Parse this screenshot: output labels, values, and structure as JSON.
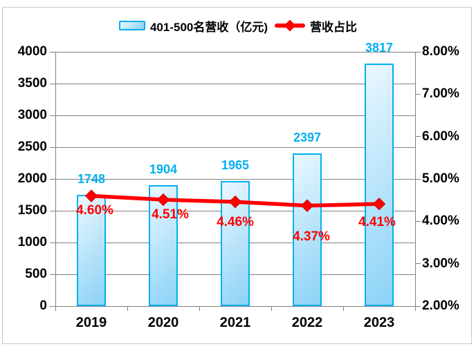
{
  "legend": [
    {
      "label": "401-500名营收（亿元)",
      "marker": "bar-swatch"
    },
    {
      "label": "营收占比",
      "marker": "line-diamond"
    }
  ],
  "chart_data": {
    "type": "bar+line",
    "categories": [
      "2019",
      "2020",
      "2021",
      "2022",
      "2023"
    ],
    "series": [
      {
        "name": "401-500名营收（亿元)",
        "type": "bar",
        "axis": "left",
        "values": [
          1748,
          1904,
          1965,
          2397,
          3817
        ],
        "labels": [
          "1748",
          "1904",
          "1965",
          "2397",
          "3817"
        ]
      },
      {
        "name": "营收占比",
        "type": "line",
        "axis": "right",
        "marker": "diamond",
        "values": [
          4.6,
          4.51,
          4.46,
          4.37,
          4.41
        ],
        "labels": [
          "4.60%",
          "4.51%",
          "4.46%",
          "4.37%",
          "4.41%"
        ]
      }
    ],
    "left_axis": {
      "min": 0,
      "max": 4000,
      "step": 500,
      "ticks": [
        "0",
        "500",
        "1000",
        "1500",
        "2000",
        "2500",
        "3000",
        "3500",
        "4000"
      ]
    },
    "right_axis": {
      "min": 2,
      "max": 8,
      "step": 1,
      "ticks": [
        "2.00%",
        "3.00%",
        "4.00%",
        "5.00%",
        "6.00%",
        "7.00%",
        "8.00%"
      ]
    },
    "grid": "horizontal-only",
    "legend_position": "top-center",
    "title": ""
  },
  "colors": {
    "bar_border": "#00b0f0",
    "bar_fill_light": "#eaf7ff",
    "bar_fill_dark": "#8ad2f6",
    "bar_label_color": "#00b0f0",
    "line_color": "#ff0000",
    "line_marker_stroke": "#cc0000",
    "pct_label_color": "#ff0000",
    "axis_text_color": "#000000",
    "grid_color": "#808080",
    "outer_border": "#c6c6c6"
  }
}
